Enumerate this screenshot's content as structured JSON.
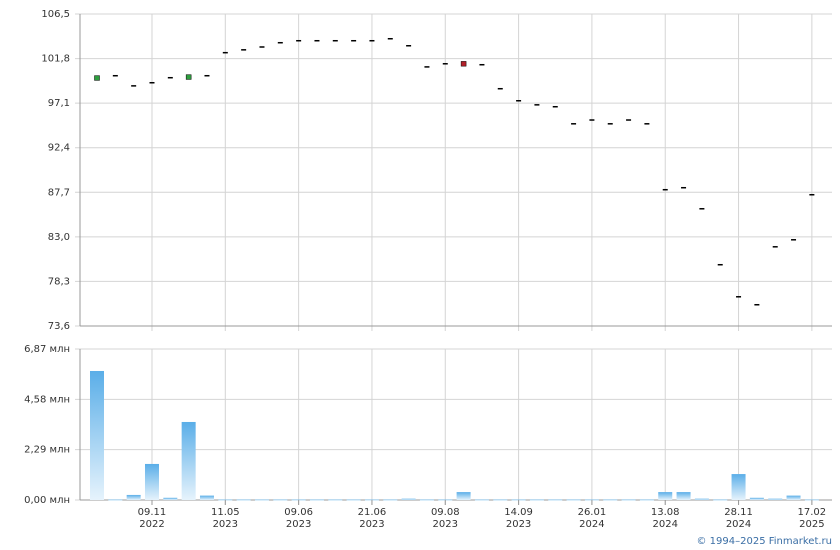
{
  "chart_data": [
    {
      "type": "candlestick",
      "categories": [
        null,
        null,
        null,
        "09.11 2022",
        null,
        null,
        null,
        "11.05 2023",
        null,
        null,
        null,
        "09.06 2023",
        null,
        null,
        null,
        "21.06 2023",
        null,
        null,
        null,
        "09.08 2023",
        null,
        null,
        null,
        "14.09 2023",
        null,
        null,
        null,
        "26.01 2024",
        null,
        null,
        null,
        "13.08 2024",
        null,
        null,
        null,
        "28.11 2024",
        null,
        null,
        null,
        "17.02 2025"
      ],
      "open": [
        99.5,
        100.07,
        99.0,
        99.33,
        99.86,
        99.6,
        100.07,
        102.5,
        102.8,
        103.1,
        103.55,
        103.76,
        103.76,
        103.76,
        103.76,
        103.76,
        103.97,
        103.23,
        101.0,
        101.33,
        101.5,
        101.23,
        98.7,
        97.43,
        97.0,
        96.8,
        95.0,
        95.4,
        95.0,
        95.4,
        95.0,
        88.05,
        88.26,
        86.04,
        80.14,
        76.76,
        75.92,
        82.03,
        82.77,
        87.52
      ],
      "close": [
        100.0,
        100.07,
        99.0,
        99.33,
        99.86,
        100.1,
        100.07,
        102.5,
        102.8,
        103.1,
        103.55,
        103.76,
        103.76,
        103.76,
        103.76,
        103.76,
        103.97,
        103.23,
        101.0,
        101.33,
        101.0,
        101.23,
        98.7,
        97.43,
        97.0,
        96.8,
        95.0,
        95.4,
        95.0,
        95.4,
        95.0,
        88.05,
        88.26,
        86.04,
        80.14,
        76.76,
        75.92,
        82.03,
        82.77,
        87.52
      ],
      "up_color": "#2e9e3e",
      "down_color": "#b3202a",
      "flat_color": "#000000",
      "ylim": [
        73.6,
        106.5
      ],
      "yticks": [
        {
          "value": 73.6,
          "label": "73,6"
        },
        {
          "value": 78.3,
          "label": "78,3"
        },
        {
          "value": 83.0,
          "label": "83,0"
        },
        {
          "value": 87.7,
          "label": "87,7"
        },
        {
          "value": 92.4,
          "label": "92,4"
        },
        {
          "value": 97.1,
          "label": "97,1"
        },
        {
          "value": 101.8,
          "label": "101,8"
        },
        {
          "value": 106.5,
          "label": "106,5"
        }
      ],
      "grid": true
    },
    {
      "type": "bar",
      "values": [
        5.87,
        0.02,
        0.23,
        1.64,
        0.1,
        3.55,
        0.2,
        0.02,
        0.02,
        0.02,
        0.02,
        0.02,
        0.02,
        0.02,
        0.02,
        0.02,
        0.02,
        0.06,
        0.02,
        0.02,
        0.36,
        0.02,
        0.02,
        0.02,
        0.02,
        0.02,
        0.02,
        0.02,
        0.02,
        0.02,
        0.02,
        0.36,
        0.36,
        0.06,
        0.02,
        1.18,
        0.1,
        0.06,
        0.2,
        0.02
      ],
      "color": "#6cb8ec",
      "ylim": [
        0,
        6.87
      ],
      "yticks": [
        {
          "value": 0,
          "label": "0,00 млн"
        },
        {
          "value": 2.29,
          "label": "2,29 млн"
        },
        {
          "value": 4.58,
          "label": "4,58 млн"
        },
        {
          "value": 6.87,
          "label": "6,87 млн"
        }
      ],
      "grid": true
    }
  ],
  "footer": "© 1994–2025 Finmarket.ru"
}
